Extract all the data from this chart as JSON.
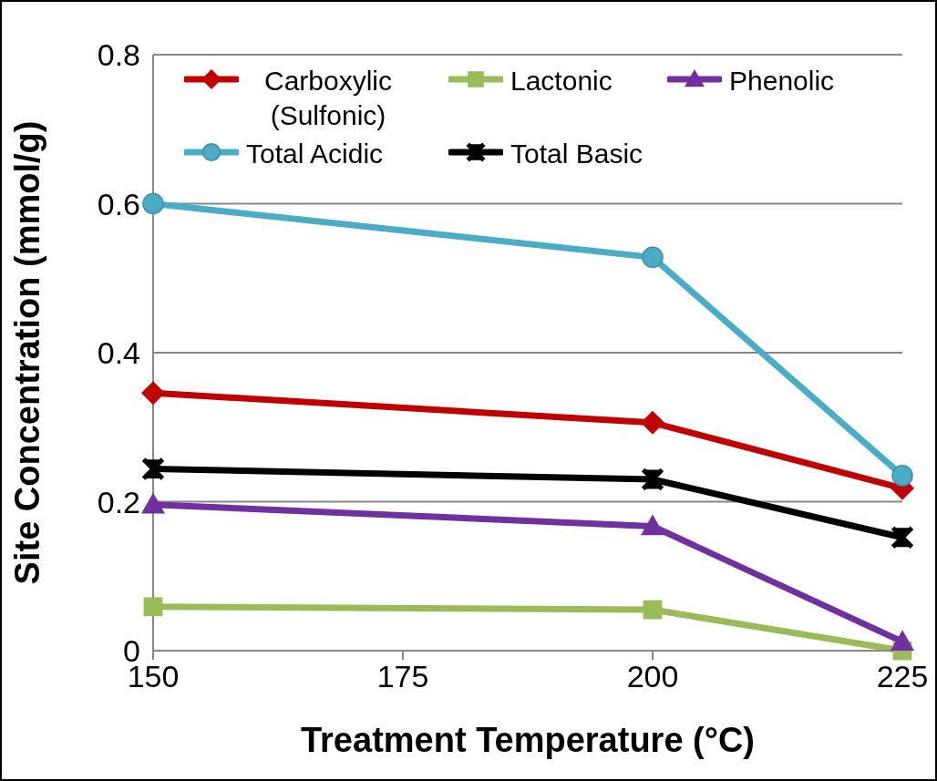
{
  "chart_data": {
    "type": "line",
    "xlabel": "Treatment Temperature (°C)",
    "ylabel": "Site Concentration (mmol/g)",
    "x": [
      150,
      200,
      225
    ],
    "xlim": [
      150,
      225
    ],
    "xticks": [
      150,
      175,
      200,
      225
    ],
    "ylim": [
      0,
      0.8
    ],
    "yticks": [
      0,
      0.2,
      0.4,
      0.6,
      0.8
    ],
    "grid": "y",
    "legend": "top",
    "line_style": "solid",
    "series": [
      {
        "name": "Carboxylic (Sulfonic)",
        "color": "#c00000",
        "marker": "diamond",
        "values": [
          0.346,
          0.306,
          0.218
        ]
      },
      {
        "name": "Lactonic",
        "color": "#9bbb59",
        "marker": "square",
        "values": [
          0.059,
          0.055,
          0.0
        ]
      },
      {
        "name": "Phenolic",
        "color": "#7030a0",
        "marker": "triangle",
        "values": [
          0.196,
          0.167,
          0.012
        ]
      },
      {
        "name": "Total Acidic",
        "color": "#4bacc6",
        "marker": "circle",
        "values": [
          0.6,
          0.528,
          0.235
        ]
      },
      {
        "name": "Total Basic",
        "color": "#000000",
        "marker": "cross",
        "values": [
          0.244,
          0.23,
          0.152
        ]
      }
    ]
  }
}
